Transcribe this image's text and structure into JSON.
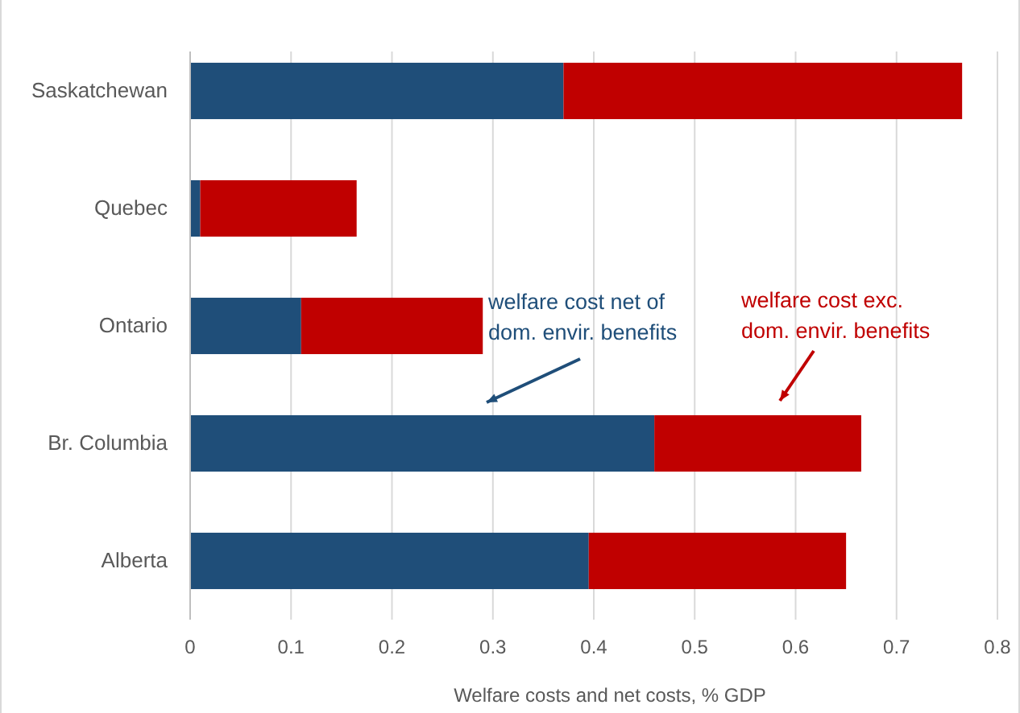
{
  "chart_data": {
    "type": "bar",
    "orientation": "horizontal",
    "stacked": true,
    "xlabel": "Welfare costs and net costs, % GDP",
    "categories": [
      "Saskatchewan",
      "Quebec",
      "Ontario",
      "Br. Columbia",
      "Alberta"
    ],
    "series": [
      {
        "name": "welfare cost net of dom. envir. benefits",
        "color": "#1f4e79",
        "values": [
          0.37,
          0.01,
          0.11,
          0.46,
          0.395
        ]
      },
      {
        "name": "welfare cost exc. dom. envir. benefits",
        "color": "#c00000",
        "values": [
          0.395,
          0.155,
          0.18,
          0.205,
          0.255
        ]
      }
    ],
    "xlim": [
      0,
      0.8
    ],
    "xticks": [
      0,
      0.1,
      0.2,
      0.3,
      0.4,
      0.5,
      0.6,
      0.7,
      0.8
    ],
    "grid": "x"
  }
}
